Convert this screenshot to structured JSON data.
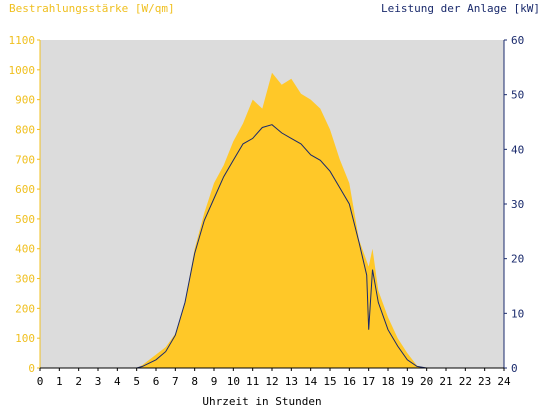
{
  "chart_data": {
    "type": "area",
    "left_axis_title": "Bestrahlungsstärke [W/qm]",
    "right_axis_title": "Leistung der Anlage [kW]",
    "xlabel": "Uhrzeit in Stunden",
    "x_range": [
      0,
      24
    ],
    "x_ticks": [
      "0",
      "1",
      "2",
      "3",
      "4",
      "5",
      "6",
      "7",
      "8",
      "9",
      "10",
      "11",
      "12",
      "13",
      "14",
      "15",
      "16",
      "17",
      "18",
      "19",
      "20",
      "21",
      "22",
      "23",
      "24"
    ],
    "y_left_range": [
      0,
      1100
    ],
    "y_left_ticks": [
      "0",
      "100",
      "200",
      "300",
      "400",
      "500",
      "600",
      "700",
      "800",
      "900",
      "1000",
      "1100"
    ],
    "y_right_range": [
      0,
      60
    ],
    "y_right_ticks": [
      "0",
      "10",
      "20",
      "30",
      "40",
      "50",
      "60"
    ],
    "colors": {
      "irradiance_fill": "#ffc828",
      "power_line": "#1a2a6c",
      "plot_bg": "#dcdcdc",
      "left_axis": "#f0c020",
      "right_axis": "#1a2a6c"
    },
    "series": [
      {
        "axis": "left",
        "style": "area",
        "x": [
          0,
          5,
          5.3,
          5.6,
          6,
          6.5,
          7,
          7.5,
          8,
          8.5,
          9,
          9.5,
          10,
          10.5,
          11,
          11.5,
          12,
          12.5,
          13,
          13.5,
          14,
          14.5,
          15,
          15.5,
          16,
          16.5,
          17,
          17.2,
          17.5,
          18,
          18.5,
          19,
          19.5,
          20,
          24
        ],
        "y": [
          0,
          0,
          10,
          25,
          45,
          70,
          115,
          220,
          400,
          520,
          620,
          680,
          760,
          820,
          900,
          870,
          990,
          950,
          970,
          920,
          900,
          870,
          800,
          700,
          620,
          430,
          340,
          400,
          260,
          170,
          100,
          50,
          8,
          0,
          0
        ]
      },
      {
        "axis": "right",
        "style": "line",
        "x": [
          0,
          5,
          5.3,
          5.6,
          6,
          6.5,
          7,
          7.5,
          8,
          8.5,
          9,
          9.5,
          10,
          10.5,
          11,
          11.5,
          12,
          12.5,
          13,
          13.5,
          14,
          14.5,
          15,
          15.5,
          16,
          16.5,
          16.9,
          17,
          17.2,
          17.5,
          18,
          18.5,
          19,
          19.5,
          20,
          24
        ],
        "y": [
          0,
          0,
          0.3,
          0.8,
          1.5,
          3,
          6,
          12,
          21,
          27,
          31,
          35,
          38,
          41,
          42,
          44,
          44.5,
          43,
          42,
          41,
          39,
          38,
          36,
          33,
          30,
          23,
          17,
          7,
          18,
          12,
          7,
          4,
          1.5,
          0.3,
          0,
          0
        ]
      }
    ]
  }
}
